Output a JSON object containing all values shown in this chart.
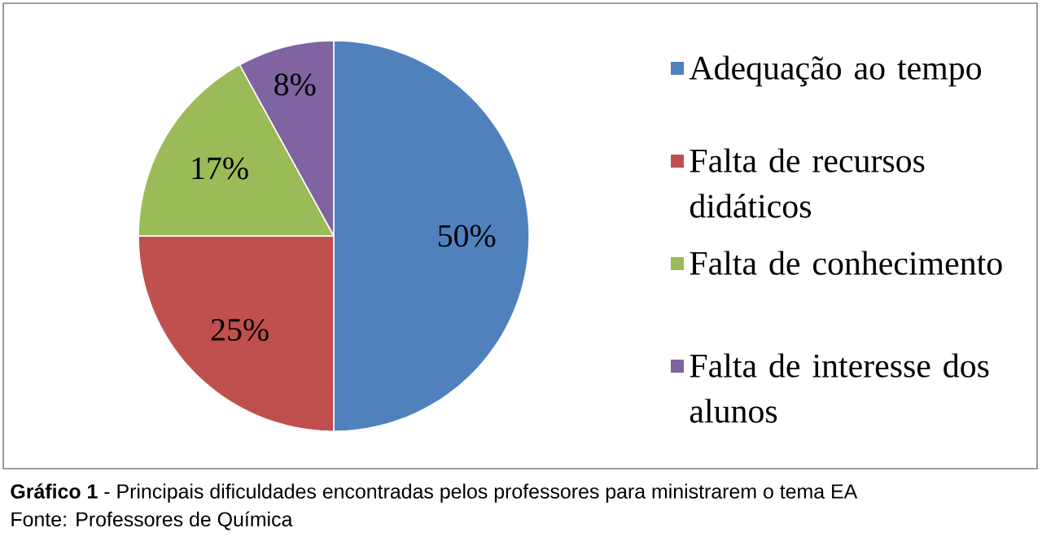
{
  "chart_data": {
    "type": "pie",
    "title": "**Gráfico 1** - Principais dificuldades encontradas pelos professores para ministrarem o tema EA",
    "annotations": [
      "Fonte: Professores de Química"
    ],
    "categories": [
      "Adequação ao tempo",
      "Falta de recursos didáticos",
      "Falta de conhecimento",
      "Falta de interesse dos alunos"
    ],
    "values": [
      50,
      25,
      17,
      8
    ],
    "value_labels": [
      "50%",
      "25%",
      "17%",
      "8%"
    ],
    "colors": [
      "#4f81bd",
      "#c0504d",
      "#9bbb59",
      "#8064a2"
    ],
    "legend": "right"
  }
}
